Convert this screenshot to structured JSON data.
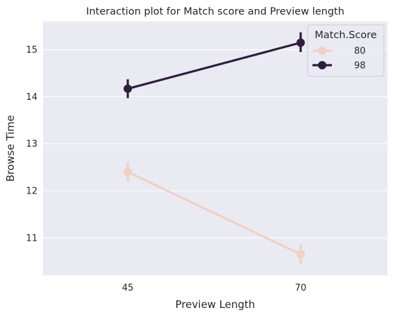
{
  "chart_data": {
    "type": "line",
    "title": "Interaction plot for Match score and Preview length",
    "xlabel": "Preview Length",
    "ylabel": "Browse Time",
    "categories": [
      "45",
      "70"
    ],
    "ylim": [
      10.2,
      15.6
    ],
    "yticks": [
      11,
      12,
      13,
      14,
      15
    ],
    "grid": true,
    "legend": {
      "title": "Match.Score",
      "placement": "top-right"
    },
    "series": [
      {
        "name": "80",
        "color": "#efd1c6",
        "values": [
          12.4,
          10.65
        ],
        "ci_low": [
          12.18,
          10.43
        ],
        "ci_high": [
          12.62,
          10.87
        ]
      },
      {
        "name": "98",
        "color": "#2d1e3e",
        "values": [
          14.17,
          15.15
        ],
        "ci_low": [
          13.97,
          14.95
        ],
        "ci_high": [
          14.37,
          15.37
        ]
      }
    ],
    "background_color": "#eaeaf2",
    "grid_color": "#ffffff"
  }
}
